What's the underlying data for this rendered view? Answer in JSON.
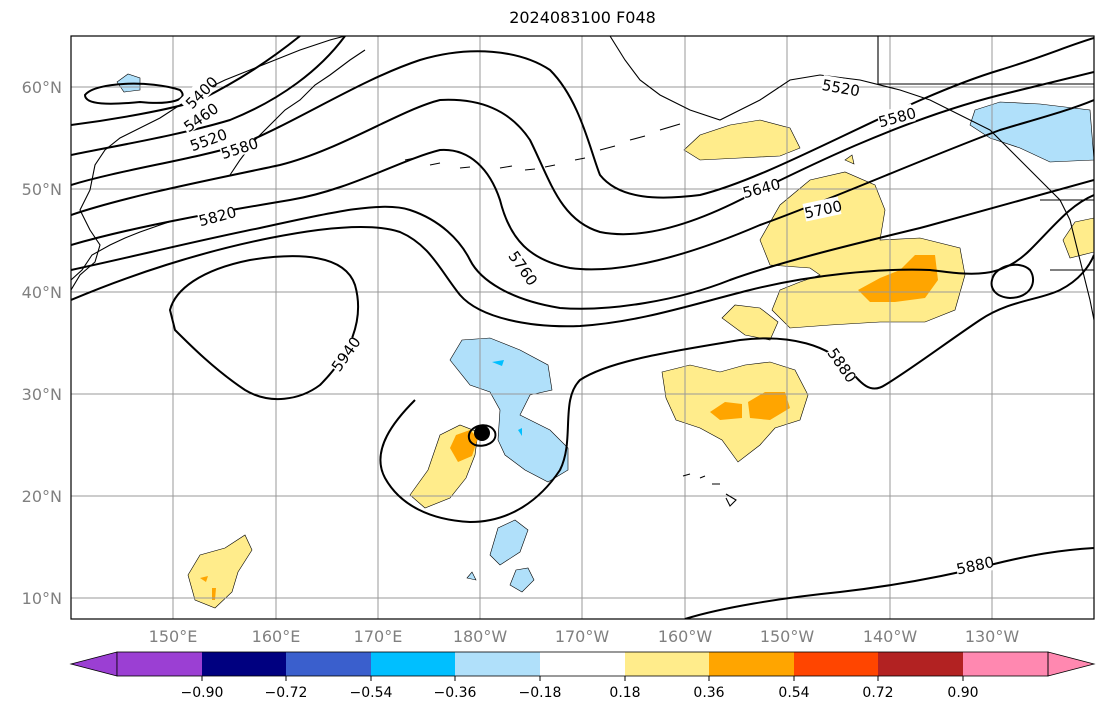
{
  "title": "2024083100 F048",
  "map": {
    "lat_labels": [
      "10°N",
      "20°N",
      "30°N",
      "40°N",
      "50°N",
      "60°N"
    ],
    "lon_labels": [
      "150°E",
      "160°E",
      "170°E",
      "180°W",
      "170°W",
      "160°W",
      "150°W",
      "140°W",
      "130°W"
    ],
    "contour_labels": [
      "5400",
      "5460",
      "5520",
      "5580",
      "5820",
      "5940",
      "5760",
      "5640",
      "5700",
      "5520",
      "5580",
      "5880",
      "5880"
    ],
    "contour_color": "#000000",
    "grid_color": "#999999"
  },
  "colorbar": {
    "ticks": [
      "−0.90",
      "−0.72",
      "−0.54",
      "−0.36",
      "−0.18",
      "0.18",
      "0.36",
      "0.54",
      "0.72",
      "0.90"
    ],
    "colors": [
      "#9b3fd3",
      "#000080",
      "#3a5fcd",
      "#00bfff",
      "#b0e0fa",
      "#ffffff",
      "#ffec8b",
      "#ffa500",
      "#ff4500",
      "#b22222",
      "#ff88b0"
    ]
  }
}
